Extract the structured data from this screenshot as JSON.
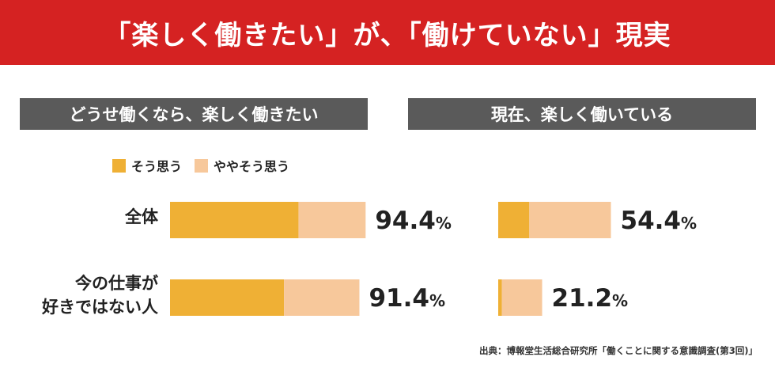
{
  "banner": {
    "title": "「楽しく働きたい」が、「働けていない」現実"
  },
  "colors": {
    "banner": "#d52222",
    "header": "#5a5a5a",
    "strong": "#efb035",
    "weak": "#f7c89b"
  },
  "chart_data": {
    "type": "bar",
    "orientation": "horizontal",
    "stacked": true,
    "xlim": [
      0,
      100
    ],
    "categories": [
      "全体",
      "今の仕事が\n好きではない人"
    ],
    "legend": {
      "position": "top-left",
      "items": [
        "そう思う",
        "ややそう思う"
      ]
    },
    "panels": [
      {
        "title": "どうせ働くなら、楽しく働きたい",
        "series": [
          {
            "name": "そう思う",
            "values": [
              62.0,
              55.0
            ]
          },
          {
            "name": "ややそう思う",
            "values": [
              32.4,
              36.4
            ]
          }
        ],
        "totals": [
          "94.4",
          "91.4"
        ]
      },
      {
        "title": "現在、楽しく働いている",
        "series": [
          {
            "name": "そう思う",
            "values": [
              15.0,
              1.8
            ]
          },
          {
            "name": "ややそう思う",
            "values": [
              39.4,
              19.4
            ]
          }
        ],
        "totals": [
          "54.4",
          "21.2"
        ]
      }
    ],
    "unit": "%"
  },
  "source": "出典：博報堂生活総合研究所「働くことに関する意識調査(第3回)」"
}
